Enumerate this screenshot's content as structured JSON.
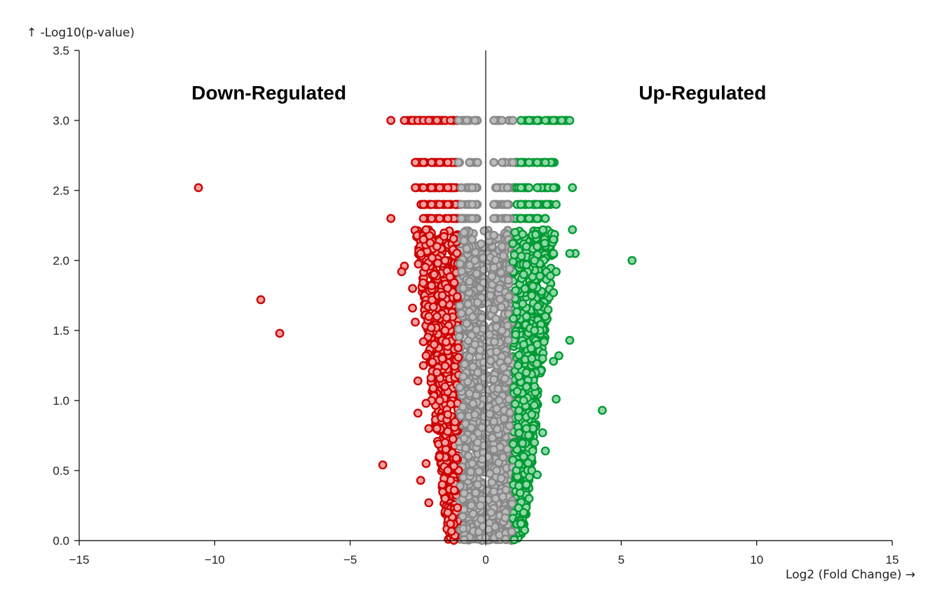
{
  "chart_data": {
    "type": "scatter",
    "title": "",
    "xlabel": "Log2 (Fold Change) →",
    "ylabel": "↑ -Log10(p-value)",
    "xlim": [
      -15,
      15
    ],
    "ylim": [
      0,
      3.5
    ],
    "x_ticks": [
      -15,
      -10,
      -5,
      0,
      5,
      10,
      15
    ],
    "x_tick_labels": [
      "−15",
      "−10",
      "−5",
      "0",
      "5",
      "10",
      "15"
    ],
    "y_ticks": [
      0,
      0.5,
      1,
      1.5,
      2,
      2.5,
      3,
      3.5
    ],
    "y_tick_labels": [
      "0.0",
      "0.5",
      "1.0",
      "1.5",
      "2.0",
      "2.5",
      "3.0",
      "3.5"
    ],
    "fold_change_threshold": 1,
    "vertical_line_x": 0,
    "grid": false,
    "annotations": [
      {
        "text": "Down-Regulated",
        "x": -8,
        "y": 3.2
      },
      {
        "text": "Up-Regulated",
        "x": 8,
        "y": 3.2
      }
    ],
    "colors": {
      "down_stroke": "#cc0000",
      "down_fill": "#f4a0a0",
      "up_stroke": "#009933",
      "up_fill": "#8fd9a8",
      "ns_stroke": "#888888",
      "ns_fill": "#bbbbbb"
    },
    "series": [
      {
        "category": "down",
        "points": [
          [
            -10.6,
            2.52
          ],
          [
            -8.3,
            1.72
          ],
          [
            -7.6,
            1.48
          ],
          [
            -3.8,
            0.54
          ],
          [
            -3.5,
            3.0
          ],
          [
            -3.5,
            2.3
          ],
          [
            -3.0,
            1.96
          ],
          [
            -3.1,
            1.92
          ],
          [
            -2.7,
            1.8
          ],
          [
            -2.7,
            1.66
          ],
          [
            -2.6,
            1.56
          ],
          [
            -2.5,
            1.14
          ],
          [
            -2.5,
            0.91
          ],
          [
            -2.4,
            0.43
          ],
          [
            -2.2,
            0.55
          ],
          [
            -2.1,
            0.27
          ],
          [
            -2.2,
            1.32
          ],
          [
            -2.3,
            1.42
          ],
          [
            -2.1,
            1.6
          ],
          [
            -2.0,
            1.82
          ],
          [
            -2.4,
            2.05
          ],
          [
            -2.3,
            2.15
          ],
          [
            -2.2,
            2.22
          ],
          [
            -2.0,
            1.0
          ],
          [
            -2.1,
            0.8
          ],
          [
            -2.3,
            1.25
          ],
          [
            -2.2,
            0.98
          ],
          [
            -3.0,
            3.0
          ],
          [
            -2.7,
            3.0
          ],
          [
            -2.5,
            3.0
          ],
          [
            -2.3,
            3.0
          ],
          [
            -2.1,
            3.0
          ],
          [
            -1.8,
            3.0
          ],
          [
            -1.5,
            3.0
          ],
          [
            -1.3,
            3.0
          ],
          [
            -2.6,
            2.7
          ],
          [
            -2.3,
            2.7
          ],
          [
            -2.0,
            2.7
          ],
          [
            -1.7,
            2.7
          ],
          [
            -1.4,
            2.7
          ],
          [
            -2.6,
            2.52
          ],
          [
            -2.3,
            2.52
          ],
          [
            -2.0,
            2.52
          ],
          [
            -1.7,
            2.52
          ],
          [
            -1.4,
            2.52
          ],
          [
            -2.3,
            2.4
          ],
          [
            -2.0,
            2.4
          ],
          [
            -1.7,
            2.4
          ],
          [
            -1.4,
            2.4
          ],
          [
            -2.3,
            2.3
          ],
          [
            -2.0,
            2.3
          ],
          [
            -1.7,
            2.3
          ],
          [
            -1.4,
            2.3
          ],
          [
            -1.8,
            2.1
          ],
          [
            -1.5,
            2.0
          ],
          [
            -1.9,
            1.9
          ],
          [
            -1.6,
            1.75
          ],
          [
            -1.8,
            1.6
          ],
          [
            -1.5,
            1.5
          ],
          [
            -1.9,
            1.4
          ],
          [
            -1.6,
            1.3
          ],
          [
            -1.8,
            1.2
          ],
          [
            -1.5,
            1.1
          ],
          [
            -1.7,
            1.0
          ],
          [
            -1.4,
            0.9
          ],
          [
            -1.8,
            0.8
          ],
          [
            -1.5,
            0.7
          ],
          [
            -1.7,
            0.6
          ],
          [
            -1.4,
            0.5
          ],
          [
            -1.6,
            0.4
          ],
          [
            -1.5,
            0.3
          ],
          [
            -1.4,
            0.2
          ],
          [
            -1.3,
            0.12
          ]
        ]
      },
      {
        "category": "up",
        "points": [
          [
            5.4,
            2.0
          ],
          [
            4.3,
            0.93
          ],
          [
            3.2,
            2.52
          ],
          [
            3.2,
            2.22
          ],
          [
            3.1,
            3.0
          ],
          [
            3.3,
            2.05
          ],
          [
            3.1,
            2.05
          ],
          [
            3.1,
            1.43
          ],
          [
            2.7,
            1.32
          ],
          [
            2.6,
            1.92
          ],
          [
            2.5,
            2.05
          ],
          [
            2.6,
            1.01
          ],
          [
            2.5,
            1.28
          ],
          [
            2.5,
            2.15
          ],
          [
            2.5,
            1.77
          ],
          [
            2.2,
            1.6
          ],
          [
            2.2,
            0.64
          ],
          [
            2.1,
            0.77
          ],
          [
            2.0,
            1.5
          ],
          [
            2.1,
            1.3
          ],
          [
            1.9,
            1.4
          ],
          [
            1.9,
            2.1
          ],
          [
            2.4,
            2.7
          ],
          [
            2.5,
            2.52
          ],
          [
            2.6,
            2.4
          ],
          [
            2.2,
            2.3
          ],
          [
            1.3,
            3.0
          ],
          [
            1.6,
            3.0
          ],
          [
            1.9,
            3.0
          ],
          [
            2.2,
            3.0
          ],
          [
            2.5,
            3.0
          ],
          [
            2.8,
            3.0
          ],
          [
            1.3,
            2.7
          ],
          [
            1.6,
            2.7
          ],
          [
            1.9,
            2.7
          ],
          [
            2.2,
            2.7
          ],
          [
            1.3,
            2.52
          ],
          [
            1.6,
            2.52
          ],
          [
            1.9,
            2.52
          ],
          [
            1.3,
            2.4
          ],
          [
            1.6,
            2.4
          ],
          [
            1.9,
            2.4
          ],
          [
            1.3,
            2.3
          ],
          [
            1.6,
            2.3
          ],
          [
            1.9,
            2.3
          ],
          [
            1.5,
            2.1
          ],
          [
            1.8,
            2.0
          ],
          [
            1.4,
            1.9
          ],
          [
            1.7,
            1.75
          ],
          [
            1.5,
            1.6
          ],
          [
            1.8,
            1.5
          ],
          [
            1.4,
            1.4
          ],
          [
            1.7,
            1.3
          ],
          [
            1.5,
            1.2
          ],
          [
            1.8,
            1.1
          ],
          [
            1.4,
            1.0
          ],
          [
            1.7,
            0.9
          ],
          [
            1.5,
            0.8
          ],
          [
            1.8,
            0.7
          ],
          [
            1.4,
            0.6
          ],
          [
            1.7,
            0.5
          ],
          [
            1.5,
            0.4
          ],
          [
            1.6,
            0.3
          ],
          [
            1.4,
            0.2
          ],
          [
            1.3,
            0.12
          ],
          [
            1.9,
            0.47
          ]
        ]
      },
      {
        "category": "ns",
        "points": [
          [
            -1.0,
            3.0
          ],
          [
            -0.7,
            3.0
          ],
          [
            -0.4,
            3.0
          ],
          [
            0.3,
            3.0
          ],
          [
            0.6,
            3.0
          ],
          [
            1.0,
            3.0
          ],
          [
            -1.0,
            2.7
          ],
          [
            -0.6,
            2.7
          ],
          [
            -0.3,
            2.7
          ],
          [
            0.3,
            2.7
          ],
          [
            0.6,
            2.7
          ],
          [
            1.0,
            2.7
          ],
          [
            -0.9,
            2.52
          ],
          [
            -0.5,
            2.52
          ],
          [
            0.4,
            2.52
          ],
          [
            0.8,
            2.52
          ],
          [
            -0.9,
            2.4
          ],
          [
            -0.5,
            2.4
          ],
          [
            0.3,
            2.4
          ],
          [
            0.8,
            2.4
          ],
          [
            -0.9,
            2.3
          ],
          [
            -0.5,
            2.3
          ],
          [
            0.3,
            2.3
          ],
          [
            0.8,
            2.3
          ],
          [
            -0.8,
            2.2
          ],
          [
            -0.5,
            2.15
          ],
          [
            0.3,
            2.18
          ],
          [
            0.6,
            2.1
          ],
          [
            -0.4,
            2.0
          ],
          [
            0.3,
            1.95
          ],
          [
            -0.6,
            1.85
          ],
          [
            0.5,
            1.8
          ],
          [
            -0.3,
            1.7
          ],
          [
            0.3,
            1.65
          ],
          [
            -0.7,
            1.55
          ],
          [
            0.6,
            1.5
          ],
          [
            -0.4,
            1.4
          ],
          [
            0.4,
            1.35
          ],
          [
            -0.3,
            1.2
          ],
          [
            0.3,
            1.15
          ],
          [
            -0.6,
            1.05
          ],
          [
            0.5,
            1.0
          ],
          [
            -0.4,
            0.9
          ],
          [
            0.3,
            0.85
          ],
          [
            -0.3,
            0.7
          ],
          [
            0.3,
            0.65
          ],
          [
            -0.5,
            0.55
          ],
          [
            0.4,
            0.5
          ],
          [
            -0.3,
            0.4
          ],
          [
            0.3,
            0.35
          ],
          [
            -0.2,
            0.25
          ],
          [
            0.2,
            0.2
          ],
          [
            -0.1,
            0.1
          ],
          [
            0.1,
            0.08
          ],
          [
            0.0,
            0.02
          ]
        ]
      }
    ]
  }
}
